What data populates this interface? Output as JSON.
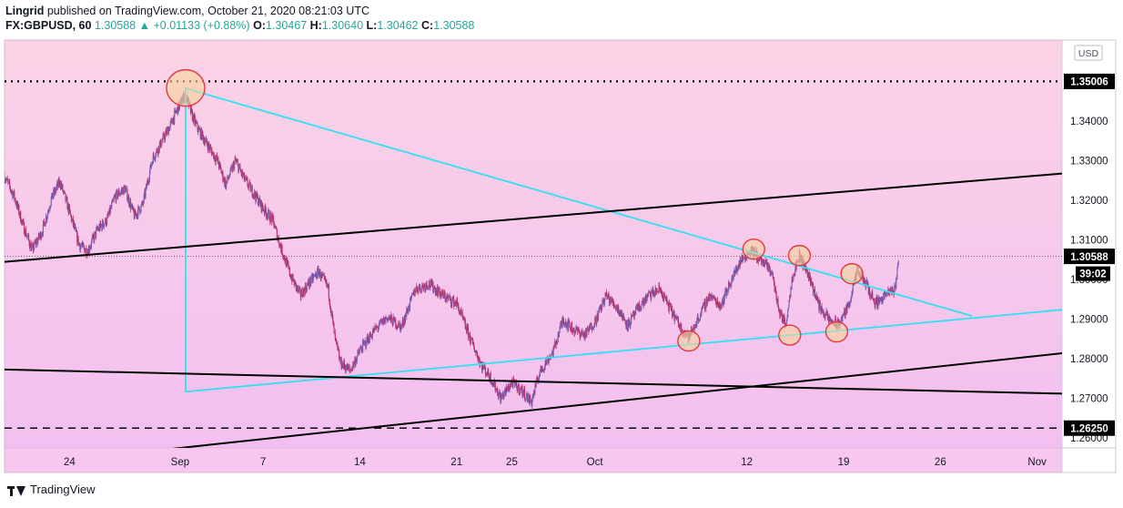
{
  "header": {
    "publisher": "Lingrid",
    "published_text": " published on TradingView.com, October 21, 2020 08:21:03 UTC",
    "symbol": "FX:GBPUSD, 60",
    "last": "1.30588",
    "change_arrow": "▲",
    "change": "+0.01133 (+0.88%)",
    "o_label": "O:",
    "o": "1.30467",
    "h_label": "H:",
    "h": "1.30640",
    "l_label": "L:",
    "l": "1.30462",
    "c_label": "C:",
    "c": "1.30588"
  },
  "footer": {
    "brand": "TradingView"
  },
  "colors": {
    "background_top": "#fbd3e6",
    "background_bottom": "#f3bff0",
    "candle_up": "#7b5fb0",
    "candle_down": "#b2306a",
    "trendline_cyan": "#33e0f0",
    "trendline_black": "#000000",
    "highlight_fill": "#f7d49a",
    "highlight_stroke": "#e0383f"
  },
  "chart_data": {
    "type": "candlestick",
    "instrument": "FX:GBPUSD",
    "timeframe": "60",
    "currency": "USD",
    "ylim": [
      1.2575,
      1.3605
    ],
    "y_ticks": [
      "1.26000",
      "1.27000",
      "1.28000",
      "1.29000",
      "1.30000",
      "1.31000",
      "1.32000",
      "1.33000",
      "1.34000",
      "1.35000"
    ],
    "x_ticks": [
      {
        "label": "24",
        "day": -8
      },
      {
        "label": "Sep",
        "day": 0
      },
      {
        "label": "7",
        "day": 6
      },
      {
        "label": "14",
        "day": 13
      },
      {
        "label": "21",
        "day": 20
      },
      {
        "label": "25",
        "day": 24
      },
      {
        "label": "Oct",
        "day": 30
      },
      {
        "label": "12",
        "day": 41
      },
      {
        "label": "19",
        "day": 48
      },
      {
        "label": "26",
        "day": 55
      },
      {
        "label": "Nov",
        "day": 62
      }
    ],
    "x_range_days": [
      -12.7,
      63.8
    ],
    "price_labels": [
      {
        "text": "1.35006",
        "value": 1.35006,
        "style": "dotted"
      },
      {
        "text": "1.30588",
        "value": 1.30588,
        "style": "last"
      },
      {
        "text": "1.26250",
        "value": 1.2625,
        "style": "dashed"
      }
    ],
    "countdown": "39:02",
    "path_points": [
      [
        -12.7,
        1.326
      ],
      [
        -12.0,
        1.321
      ],
      [
        -11.3,
        1.313
      ],
      [
        -10.7,
        1.3075
      ],
      [
        -10.0,
        1.312
      ],
      [
        -9.3,
        1.3205
      ],
      [
        -8.7,
        1.3248
      ],
      [
        -8.0,
        1.317
      ],
      [
        -7.3,
        1.3088
      ],
      [
        -6.7,
        1.3072
      ],
      [
        -6.0,
        1.3125
      ],
      [
        -5.3,
        1.315
      ],
      [
        -4.7,
        1.321
      ],
      [
        -4.0,
        1.323
      ],
      [
        -3.3,
        1.316
      ],
      [
        -2.7,
        1.319
      ],
      [
        -2.0,
        1.3305
      ],
      [
        -1.3,
        1.335
      ],
      [
        -0.7,
        1.339
      ],
      [
        -0.2,
        1.343
      ],
      [
        0.4,
        1.347
      ],
      [
        0.8,
        1.342
      ],
      [
        1.3,
        1.338
      ],
      [
        2.0,
        1.334
      ],
      [
        2.7,
        1.33
      ],
      [
        3.3,
        1.324
      ],
      [
        4.0,
        1.33
      ],
      [
        4.7,
        1.325
      ],
      [
        5.3,
        1.322
      ],
      [
        6.0,
        1.318
      ],
      [
        6.7,
        1.315
      ],
      [
        7.3,
        1.308
      ],
      [
        8.0,
        1.301
      ],
      [
        8.7,
        1.296
      ],
      [
        9.3,
        1.299
      ],
      [
        10.0,
        1.302
      ],
      [
        10.7,
        1.298
      ],
      [
        11.2,
        1.285
      ],
      [
        11.6,
        1.279
      ],
      [
        12.3,
        1.277
      ],
      [
        13.0,
        1.282
      ],
      [
        14.0,
        1.287
      ],
      [
        15.0,
        1.2905
      ],
      [
        16.0,
        1.288
      ],
      [
        17.0,
        1.2975
      ],
      [
        18.0,
        1.299
      ],
      [
        19.0,
        1.296
      ],
      [
        20.0,
        1.294
      ],
      [
        21.0,
        1.285
      ],
      [
        21.8,
        1.2785
      ],
      [
        22.5,
        1.275
      ],
      [
        23.2,
        1.27
      ],
      [
        24.0,
        1.274
      ],
      [
        24.7,
        1.272
      ],
      [
        25.4,
        1.269
      ],
      [
        26.0,
        1.2765
      ],
      [
        27.0,
        1.282
      ],
      [
        27.7,
        1.29
      ],
      [
        28.4,
        1.2875
      ],
      [
        29.3,
        1.286
      ],
      [
        30.1,
        1.29
      ],
      [
        30.8,
        1.296
      ],
      [
        31.6,
        1.293
      ],
      [
        32.4,
        1.2885
      ],
      [
        33.1,
        1.2925
      ],
      [
        33.9,
        1.296
      ],
      [
        34.7,
        1.2975
      ],
      [
        35.4,
        1.293
      ],
      [
        36.2,
        1.288
      ],
      [
        36.8,
        1.2855
      ],
      [
        37.6,
        1.291
      ],
      [
        38.3,
        1.296
      ],
      [
        39.1,
        1.2935
      ],
      [
        39.7,
        1.2985
      ],
      [
        40.5,
        1.3045
      ],
      [
        41.3,
        1.3075
      ],
      [
        42.0,
        1.305
      ],
      [
        42.8,
        1.302
      ],
      [
        43.3,
        1.2925
      ],
      [
        43.8,
        1.2885
      ],
      [
        44.3,
        1.301
      ],
      [
        44.8,
        1.306
      ],
      [
        45.5,
        1.301
      ],
      [
        46.2,
        1.2935
      ],
      [
        46.9,
        1.29
      ],
      [
        47.6,
        1.2885
      ],
      [
        48.3,
        1.293
      ],
      [
        49.0,
        1.302
      ],
      [
        49.6,
        1.299
      ],
      [
        50.3,
        1.294
      ],
      [
        51.0,
        1.296
      ],
      [
        51.7,
        1.2975
      ],
      [
        52.0,
        1.3059
      ]
    ],
    "trendlines": [
      {
        "name": "triangle-upper-line",
        "color": "cyan",
        "from": [
          0.4,
          1.3483
        ],
        "to": [
          57.3,
          1.2908
        ]
      },
      {
        "name": "triangle-lower-line",
        "color": "cyan",
        "from": [
          0.4,
          1.2717
        ],
        "to": [
          63.8,
          1.2924
        ]
      },
      {
        "name": "triangle-vertical-line",
        "color": "cyan",
        "from": [
          0.4,
          1.3483
        ],
        "to": [
          0.4,
          1.2717
        ]
      },
      {
        "name": "channel-upper-line",
        "color": "black",
        "from": [
          -12.7,
          1.3045
        ],
        "to": [
          63.8,
          1.3268
        ]
      },
      {
        "name": "channel-lower-line",
        "color": "black",
        "from": [
          -1.3,
          1.257
        ],
        "to": [
          63.8,
          1.2814
        ]
      },
      {
        "name": "horizontal-support-line",
        "color": "black",
        "from": [
          -12.7,
          1.2773
        ],
        "to": [
          63.8,
          1.2712
        ]
      }
    ],
    "highlights": [
      {
        "name": "swing-high-circle",
        "day": 0.4,
        "value": 1.3484,
        "rx": 21,
        "ry": 20
      },
      {
        "name": "touch-circle-1",
        "day": 41.5,
        "value": 1.3077,
        "rx": 12,
        "ry": 11
      },
      {
        "name": "touch-circle-2",
        "day": 44.8,
        "value": 1.3061,
        "rx": 12,
        "ry": 11
      },
      {
        "name": "touch-circle-3",
        "day": 48.6,
        "value": 1.3015,
        "rx": 12,
        "ry": 11
      },
      {
        "name": "touch-circle-4",
        "day": 36.8,
        "value": 1.2845,
        "rx": 12,
        "ry": 11
      },
      {
        "name": "touch-circle-5",
        "day": 44.1,
        "value": 1.286,
        "rx": 12,
        "ry": 11
      },
      {
        "name": "touch-circle-6",
        "day": 47.5,
        "value": 1.2868,
        "rx": 12,
        "ry": 11
      }
    ]
  }
}
